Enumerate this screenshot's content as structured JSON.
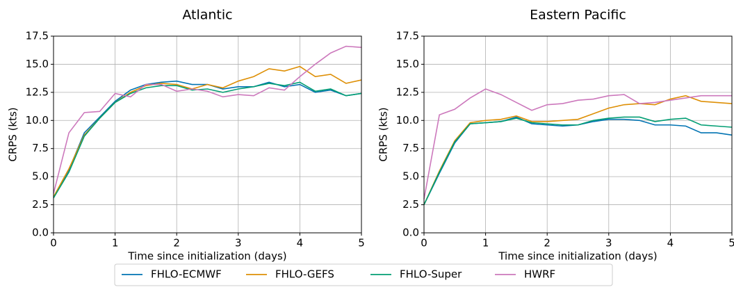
{
  "chart_data": [
    {
      "type": "line",
      "title": "Atlantic",
      "xlabel": "Time since initialization (days)",
      "ylabel": "CRPS (kts)",
      "x": [
        0,
        0.25,
        0.5,
        0.75,
        1,
        1.25,
        1.5,
        1.75,
        2,
        2.25,
        2.5,
        2.75,
        3,
        3.25,
        3.5,
        3.75,
        4,
        4.25,
        4.5,
        4.75,
        5
      ],
      "xlim": [
        0,
        5
      ],
      "xticks": [
        0,
        1,
        2,
        3,
        4,
        5
      ],
      "ylim": [
        0,
        17.5
      ],
      "yticks": [
        {
          "value": 0,
          "label": "0.0"
        },
        2.5,
        {
          "value": 5,
          "label": "5.0"
        },
        7.5,
        {
          "value": 10,
          "label": "10.0"
        },
        12.5,
        {
          "value": 15,
          "label": "15.0"
        },
        17.5
      ],
      "grid": true,
      "series": [
        {
          "name": "FHLO-ECMWF",
          "color": "#0173b2",
          "values": [
            3.2,
            5.6,
            8.9,
            10.3,
            11.7,
            12.7,
            13.2,
            13.4,
            13.5,
            13.2,
            13.2,
            12.8,
            13.0,
            13.0,
            13.4,
            13.0,
            13.2,
            12.5,
            12.7,
            12.2,
            12.4
          ]
        },
        {
          "name": "FHLO-GEFS",
          "color": "#de8f05",
          "values": [
            3.2,
            5.7,
            8.7,
            10.2,
            11.6,
            12.5,
            13.1,
            13.3,
            13.2,
            12.8,
            13.2,
            12.9,
            13.5,
            13.9,
            14.6,
            14.4,
            14.8,
            13.9,
            14.1,
            13.3,
            13.6
          ]
        },
        {
          "name": "FHLO-Super",
          "color": "#029e73",
          "values": [
            3.1,
            5.4,
            8.6,
            10.2,
            11.6,
            12.4,
            12.9,
            13.1,
            13.1,
            12.7,
            12.8,
            12.5,
            12.8,
            13.0,
            13.3,
            13.1,
            13.4,
            12.6,
            12.8,
            12.2,
            12.4
          ]
        },
        {
          "name": "HWRF",
          "color": "#cc78bc",
          "values": [
            3.5,
            8.9,
            10.7,
            10.8,
            12.4,
            12.1,
            13.2,
            13.2,
            12.6,
            12.8,
            12.6,
            12.1,
            12.3,
            12.2,
            12.9,
            12.7,
            13.9,
            15.0,
            16.0,
            16.6,
            16.5
          ]
        }
      ]
    },
    {
      "type": "line",
      "title": "Eastern Pacific",
      "xlabel": "Time since initialization (days)",
      "ylabel": "CRPS (kts)",
      "x": [
        0,
        0.25,
        0.5,
        0.75,
        1,
        1.25,
        1.5,
        1.75,
        2,
        2.25,
        2.5,
        2.75,
        3,
        3.25,
        3.5,
        3.75,
        4,
        4.25,
        4.5,
        4.75,
        5
      ],
      "xlim": [
        0,
        5
      ],
      "xticks": [
        0,
        1,
        2,
        3,
        4,
        5
      ],
      "ylim": [
        0,
        17.5
      ],
      "yticks": [
        {
          "value": 0,
          "label": "0.0"
        },
        2.5,
        {
          "value": 5,
          "label": "5.0"
        },
        7.5,
        {
          "value": 10,
          "label": "10.0"
        },
        12.5,
        {
          "value": 15,
          "label": "15.0"
        },
        17.5
      ],
      "grid": true,
      "series": [
        {
          "color": "#0173b2",
          "values": [
            2.5,
            5.3,
            8.0,
            9.7,
            9.8,
            9.9,
            10.3,
            9.7,
            9.6,
            9.5,
            9.6,
            9.9,
            10.1,
            10.1,
            10.0,
            9.6,
            9.6,
            9.5,
            8.9,
            8.9,
            8.7
          ]
        },
        {
          "color": "#de8f05",
          "values": [
            2.5,
            5.5,
            8.2,
            9.8,
            10.0,
            10.1,
            10.4,
            9.9,
            9.9,
            10.0,
            10.1,
            10.6,
            11.1,
            11.4,
            11.5,
            11.4,
            11.9,
            12.2,
            11.7,
            11.6,
            11.5
          ]
        },
        {
          "color": "#029e73",
          "values": [
            2.5,
            5.4,
            8.1,
            9.7,
            9.8,
            9.9,
            10.2,
            9.8,
            9.7,
            9.6,
            9.6,
            10.0,
            10.2,
            10.3,
            10.3,
            9.9,
            10.1,
            10.2,
            9.6,
            9.5,
            9.4
          ]
        },
        {
          "color": "#cc78bc",
          "values": [
            3.0,
            10.5,
            11.0,
            12.0,
            12.8,
            12.3,
            11.6,
            10.9,
            11.4,
            11.5,
            11.8,
            11.9,
            12.2,
            12.3,
            11.5,
            11.6,
            11.8,
            12.0,
            12.2,
            12.2,
            12.2
          ]
        }
      ]
    }
  ]
}
